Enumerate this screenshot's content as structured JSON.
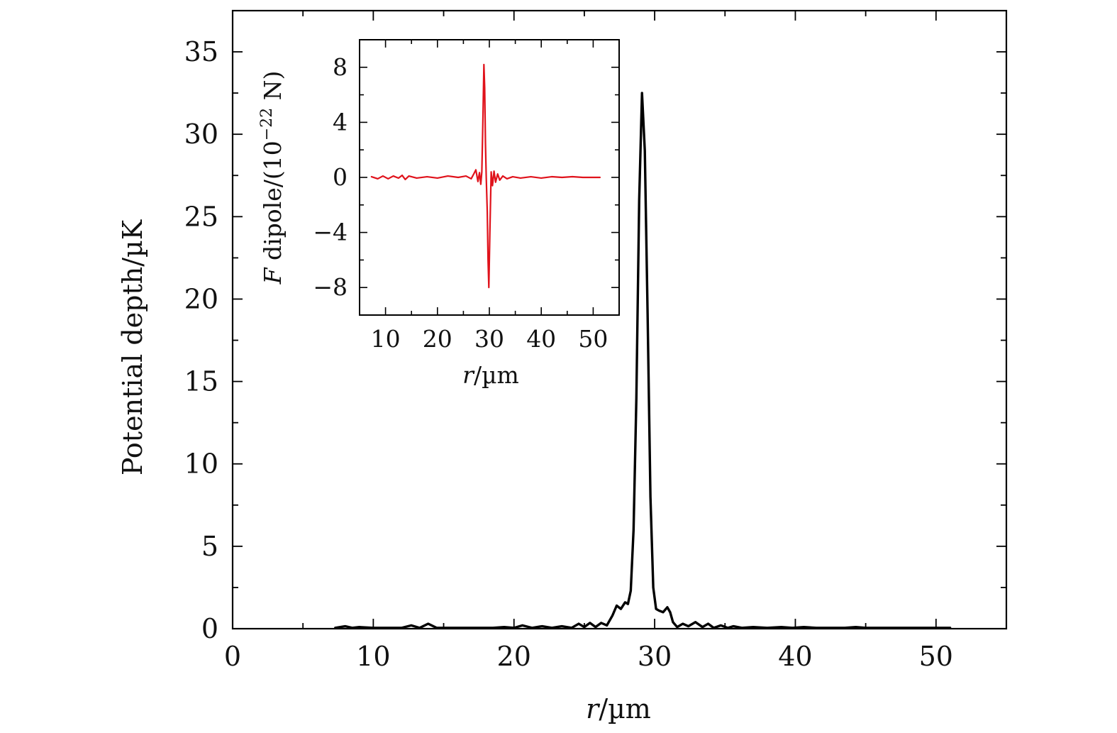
{
  "chart_data": [
    {
      "type": "line",
      "xlabel_var": "r",
      "xlabel_unit": "/µm",
      "ylabel": "Potential depth/µK",
      "xlim": [
        0,
        55
      ],
      "ylim": [
        0,
        37.5
      ],
      "x_ticks": [
        0,
        10,
        20,
        30,
        40,
        50
      ],
      "y_ticks": [
        0,
        5,
        10,
        15,
        20,
        25,
        30,
        35
      ],
      "line_color": "#000000",
      "series": [
        {
          "x": [
            7.3,
            8.0,
            8.5,
            9.0,
            10.0,
            11.0,
            12.0,
            12.7,
            13.3,
            13.9,
            14.5,
            15.5,
            16.5,
            17.5,
            18.5,
            19.3,
            20.0,
            20.6,
            21.3,
            22.0,
            22.7,
            23.4,
            24.1,
            24.6,
            25.0,
            25.4,
            25.8,
            26.2,
            26.6,
            27.0,
            27.3,
            27.6,
            27.9,
            28.1,
            28.3,
            28.5,
            28.7,
            28.9,
            29.1,
            29.3,
            29.5,
            29.7,
            29.9,
            30.1,
            30.3,
            30.6,
            30.9,
            31.1,
            31.3,
            31.6,
            32.0,
            32.4,
            32.9,
            33.4,
            33.8,
            34.2,
            34.7,
            35.2,
            35.6,
            36.2,
            37.0,
            38.0,
            39.0,
            39.8,
            40.6,
            41.5,
            42.5,
            43.5,
            44.3,
            45.0,
            46.0,
            47.0,
            48.0,
            49.0,
            50.0,
            51.0
          ],
          "y": [
            0.05,
            0.15,
            0.05,
            0.1,
            0.05,
            0.05,
            0.05,
            0.2,
            0.05,
            0.3,
            0.05,
            0.05,
            0.05,
            0.05,
            0.05,
            0.1,
            0.05,
            0.2,
            0.05,
            0.15,
            0.05,
            0.15,
            0.05,
            0.3,
            0.1,
            0.35,
            0.1,
            0.35,
            0.2,
            0.8,
            1.4,
            1.2,
            1.6,
            1.5,
            2.3,
            6.0,
            14.0,
            26.0,
            32.5,
            29.0,
            19.0,
            8.0,
            2.5,
            1.2,
            1.1,
            1.0,
            1.3,
            1.0,
            0.4,
            0.1,
            0.3,
            0.15,
            0.4,
            0.1,
            0.3,
            0.05,
            0.2,
            0.05,
            0.15,
            0.05,
            0.1,
            0.05,
            0.1,
            0.05,
            0.1,
            0.05,
            0.05,
            0.05,
            0.1,
            0.05,
            0.05,
            0.05,
            0.05,
            0.05,
            0.05,
            0.05
          ]
        }
      ]
    },
    {
      "type": "line",
      "xlabel_var": "r",
      "xlabel_unit": "/µm",
      "ylabel_var": "F",
      "ylabel_text": " dipole/(10",
      "ylabel_exp": "−22",
      "ylabel_tail": " N)",
      "xlim": [
        5,
        55
      ],
      "ylim": [
        -10,
        10
      ],
      "x_ticks": [
        10,
        20,
        30,
        40,
        50
      ],
      "y_ticks": [
        -8,
        -4,
        0,
        4,
        8
      ],
      "y_tick_labels": [
        "−8",
        "−4",
        "0",
        "4",
        "8"
      ],
      "line_color": "#e0121b",
      "series": [
        {
          "x": [
            7.3,
            8.5,
            9.5,
            10.5,
            11.5,
            12.5,
            13.2,
            13.8,
            14.5,
            16.0,
            18.0,
            20.0,
            22.0,
            24.0,
            25.5,
            26.5,
            27.0,
            27.4,
            27.8,
            28.1,
            28.35,
            28.55,
            28.75,
            28.95,
            29.1,
            29.25,
            29.4,
            29.6,
            29.75,
            29.9,
            30.1,
            30.35,
            30.6,
            30.9,
            31.2,
            31.6,
            32.0,
            32.6,
            33.4,
            34.5,
            36.0,
            38.0,
            40.0,
            42.0,
            44.0,
            46.0,
            48.0,
            50.0,
            51.3
          ],
          "y": [
            0.05,
            -0.1,
            0.1,
            -0.1,
            0.1,
            -0.05,
            0.15,
            -0.15,
            0.1,
            -0.05,
            0.05,
            -0.05,
            0.1,
            0.0,
            0.1,
            -0.1,
            0.25,
            0.55,
            -0.3,
            0.35,
            -0.5,
            0.4,
            4.0,
            8.2,
            6.5,
            2.5,
            0.0,
            -2.5,
            -6.0,
            -8.0,
            -4.0,
            0.4,
            -0.6,
            0.45,
            -0.35,
            0.25,
            -0.2,
            0.1,
            -0.1,
            0.05,
            -0.05,
            0.05,
            -0.05,
            0.05,
            0.0,
            0.05,
            0.0,
            0.0,
            0.0
          ]
        }
      ]
    }
  ]
}
